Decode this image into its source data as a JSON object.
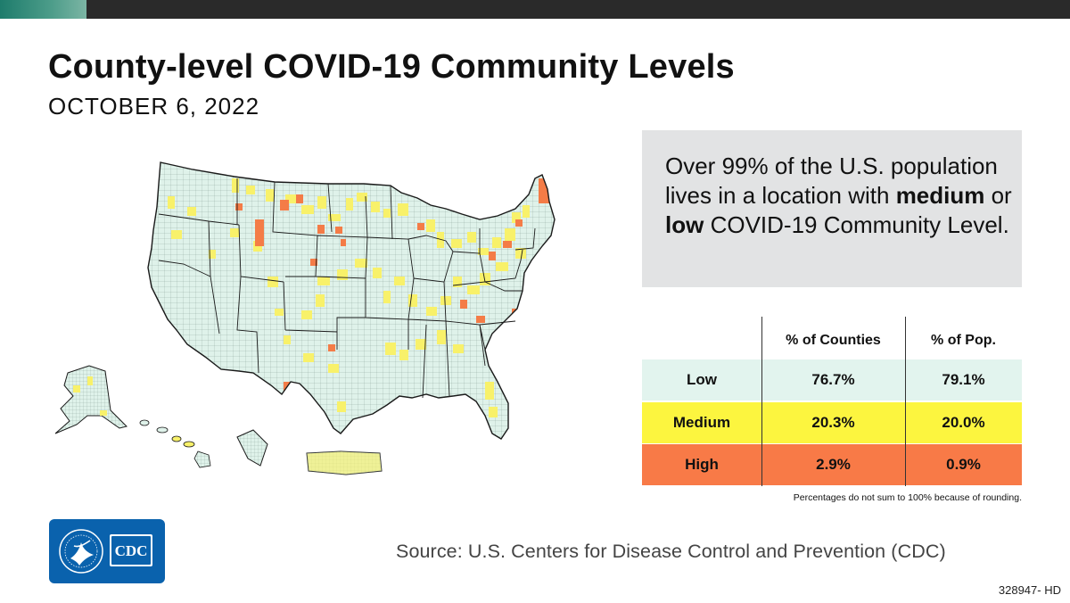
{
  "header": {
    "title": "County-level COVID-19 Community Levels",
    "date": "OCTOBER 6, 2022"
  },
  "callout": {
    "part1": "Over 99% of the U.S. population lives in a location with ",
    "bold1": "medium",
    "part2": " or ",
    "bold2": "low",
    "part3": " COVID-19 Community Level."
  },
  "table": {
    "columns": [
      "% of Counties",
      "% of Pop."
    ],
    "rows": [
      {
        "level": "Low",
        "counties": "76.7%",
        "population": "79.1%",
        "color": "#e2f4ee"
      },
      {
        "level": "Medium",
        "counties": "20.3%",
        "population": "20.0%",
        "color": "#fcf53f"
      },
      {
        "level": "High",
        "counties": "2.9%",
        "population": "0.9%",
        "color": "#f87a47"
      }
    ],
    "note": "Percentages do not sum to 100% because of rounding."
  },
  "map": {
    "legend_colors": {
      "low": "#dff2ea",
      "medium": "#f8f16a",
      "high": "#f47c47"
    }
  },
  "logo": {
    "text": "CDC"
  },
  "footer": {
    "source": "Source: U.S. Centers for Disease Control and Prevention (CDC)",
    "code": "328947- HD"
  }
}
